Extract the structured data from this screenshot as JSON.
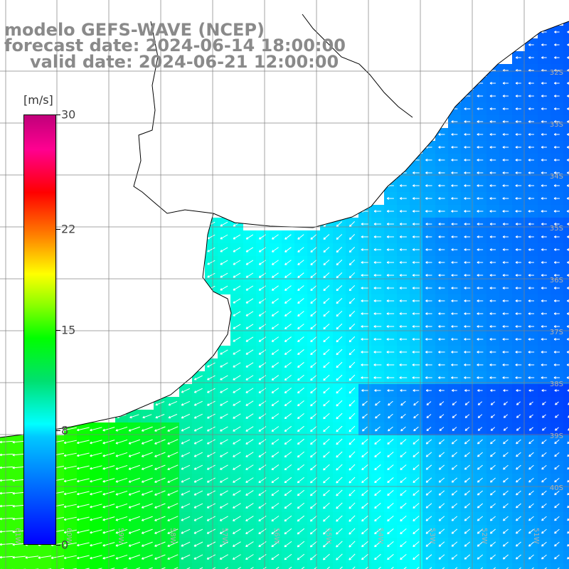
{
  "map": {
    "title_lines": [
      "modelo GEFS-WAVE (NCEP)",
      "forecast date: 2024-06-14 18:00:00",
      "valid date: 2024-06-21 12:00:00"
    ],
    "lat_labels": [
      "32S",
      "33S",
      "34S",
      "35S",
      "36S",
      "37S",
      "38S",
      "39S",
      "40S"
    ],
    "lon_labels": [
      "61W",
      "60W",
      "59W",
      "58W",
      "57W",
      "56W",
      "55W",
      "54W",
      "53W",
      "52W",
      "51W"
    ],
    "colorbar": {
      "unit": "[m/s]",
      "ticks": [
        "30",
        "22",
        "15",
        "8",
        "0"
      ],
      "tick_values": [
        30,
        22,
        15,
        8,
        0
      ],
      "range": [
        0,
        30
      ]
    },
    "colors": {
      "land": "#ffffff",
      "coastline": "#000000",
      "grid": "#808080",
      "title_text": "#8a8a8a",
      "arrow": "#ffffff"
    },
    "field": "wind speed [m/s] with direction arrows"
  }
}
